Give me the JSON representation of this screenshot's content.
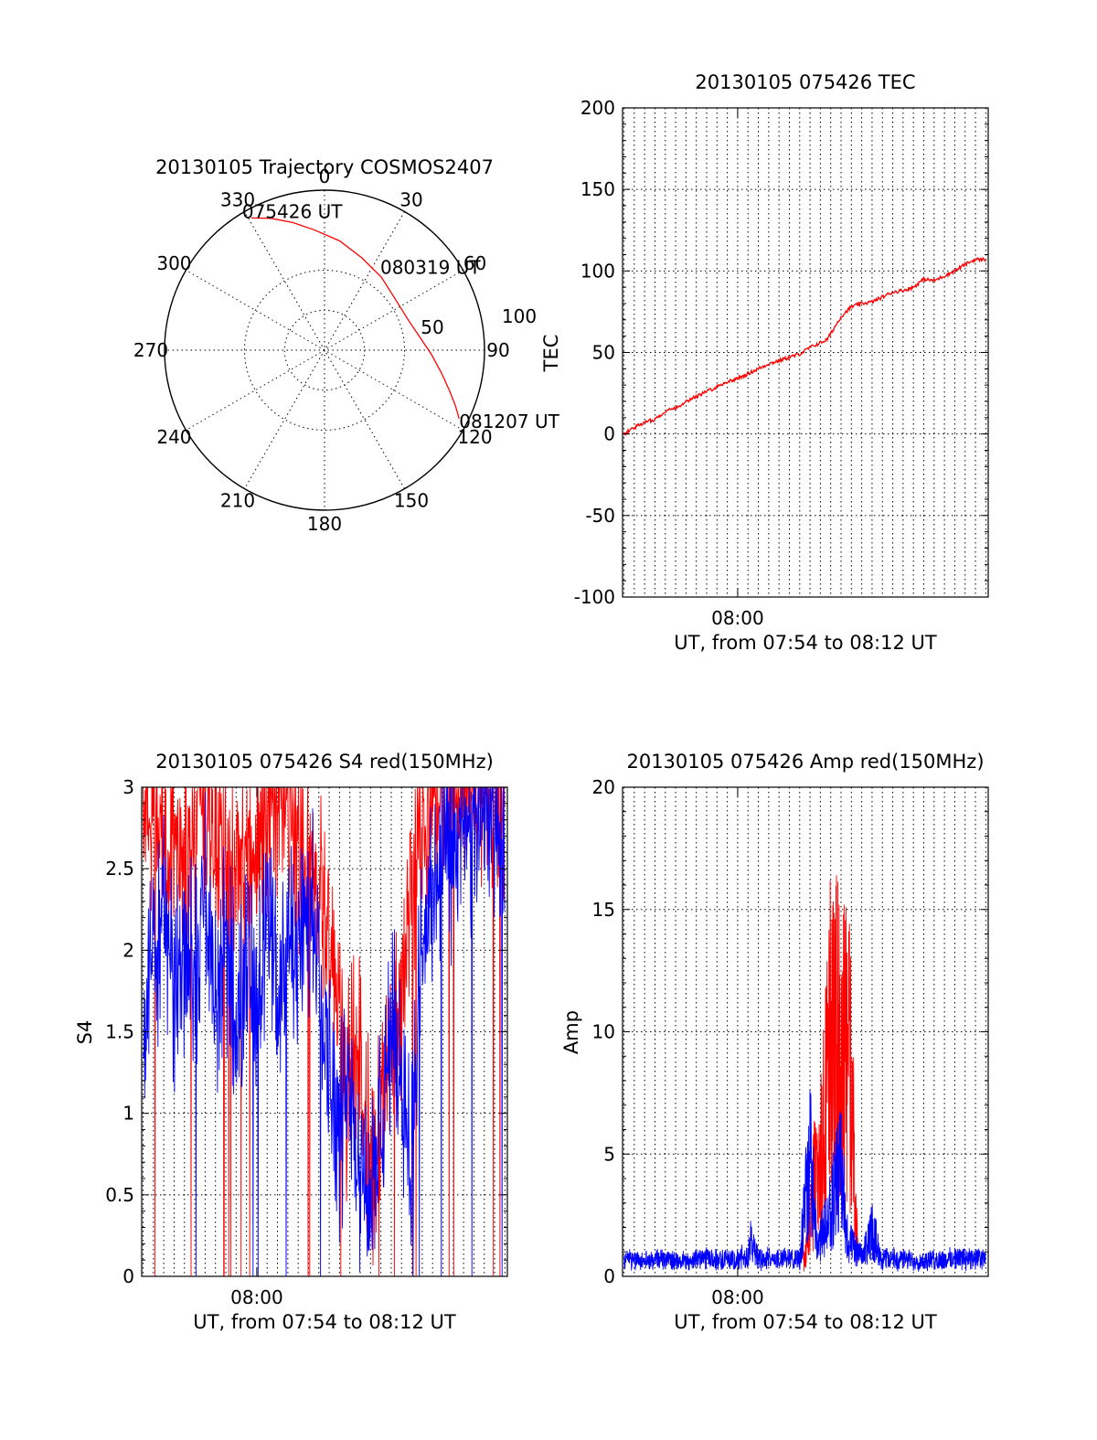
{
  "colors": {
    "red": "#ff0000",
    "blue": "#0000ff",
    "axis": "#000000",
    "background": "#ffffff"
  },
  "chart_data": [
    {
      "id": "trajectory",
      "type": "polar",
      "title": "20130105 Trajectory COSMOS2407",
      "azimuth_ticks": [
        "0",
        "30",
        "60",
        "90",
        "120",
        "150",
        "180",
        "210",
        "240",
        "270",
        "300",
        "330"
      ],
      "radial_ticks": [
        "50",
        "100"
      ],
      "elevation_range": [
        0,
        90
      ],
      "series": [
        {
          "color": "red",
          "points": [
            {
              "az": 331,
              "el": 5
            },
            {
              "az": 338,
              "el": 10
            },
            {
              "az": 346,
              "el": 16
            },
            {
              "az": 355,
              "el": 22
            },
            {
              "az": 8,
              "el": 28
            },
            {
              "az": 22,
              "el": 34
            },
            {
              "az": 38,
              "el": 38
            },
            {
              "az": 56,
              "el": 41
            },
            {
              "az": 70,
              "el": 40
            },
            {
              "az": 82,
              "el": 36
            },
            {
              "az": 92,
              "el": 30
            },
            {
              "az": 101,
              "el": 23
            },
            {
              "az": 108,
              "el": 16
            },
            {
              "az": 113,
              "el": 10
            },
            {
              "az": 117,
              "el": 5
            }
          ]
        }
      ],
      "annotations": [
        {
          "text": "075426 UT",
          "az": 331,
          "el": 5
        },
        {
          "text": "080319 UT",
          "az": 56,
          "el": 41
        },
        {
          "text": "081207 UT",
          "az": 117,
          "el": 5
        }
      ]
    },
    {
      "id": "tec",
      "type": "line",
      "title": "20130105 075426 TEC",
      "xlabel": "UT, from 07:54 to 08:12 UT",
      "ylabel": "TEC",
      "xlim": [
        "07:54:26",
        "08:12:07"
      ],
      "ylim": [
        -100,
        200
      ],
      "yticks": [
        -100,
        -50,
        0,
        50,
        100,
        150,
        200
      ],
      "xtick_labels": [
        {
          "x": "08:00:00",
          "label": "08:00"
        }
      ],
      "grid": true,
      "series": [
        {
          "color": "red",
          "points": [
            {
              "x": "07:54:30",
              "y": 0
            },
            {
              "x": "07:55:00",
              "y": 4
            },
            {
              "x": "07:55:30",
              "y": 7
            },
            {
              "x": "07:56:00",
              "y": 9
            },
            {
              "x": "07:56:30",
              "y": 14
            },
            {
              "x": "07:57:00",
              "y": 16
            },
            {
              "x": "07:57:30",
              "y": 20
            },
            {
              "x": "07:58:00",
              "y": 23
            },
            {
              "x": "07:58:30",
              "y": 26
            },
            {
              "x": "07:59:00",
              "y": 29
            },
            {
              "x": "07:59:30",
              "y": 32
            },
            {
              "x": "08:00:00",
              "y": 34
            },
            {
              "x": "08:00:30",
              "y": 37
            },
            {
              "x": "08:01:00",
              "y": 40
            },
            {
              "x": "08:01:30",
              "y": 43
            },
            {
              "x": "08:02:00",
              "y": 45
            },
            {
              "x": "08:02:30",
              "y": 47
            },
            {
              "x": "08:03:00",
              "y": 49
            },
            {
              "x": "08:03:30",
              "y": 53
            },
            {
              "x": "08:04:00",
              "y": 56
            },
            {
              "x": "08:04:20",
              "y": 58
            },
            {
              "x": "08:04:40",
              "y": 65
            },
            {
              "x": "08:05:00",
              "y": 72
            },
            {
              "x": "08:05:30",
              "y": 78
            },
            {
              "x": "08:06:00",
              "y": 80
            },
            {
              "x": "08:06:30",
              "y": 81
            },
            {
              "x": "08:07:00",
              "y": 84
            },
            {
              "x": "08:07:30",
              "y": 87
            },
            {
              "x": "08:08:00",
              "y": 88
            },
            {
              "x": "08:08:30",
              "y": 90
            },
            {
              "x": "08:09:00",
              "y": 95
            },
            {
              "x": "08:09:30",
              "y": 94
            },
            {
              "x": "08:10:00",
              "y": 97
            },
            {
              "x": "08:10:30",
              "y": 100
            },
            {
              "x": "08:11:00",
              "y": 104
            },
            {
              "x": "08:11:30",
              "y": 107
            },
            {
              "x": "08:12:00",
              "y": 107
            }
          ]
        }
      ]
    },
    {
      "id": "s4",
      "type": "line",
      "title": "20130105 075426 S4 red(150MHz)",
      "xlabel": "UT, from 07:54 to 08:12 UT",
      "ylabel": "S4",
      "xlim": [
        "07:54:26",
        "08:12:07"
      ],
      "ylim": [
        0,
        3
      ],
      "yticks": [
        0,
        0.5,
        1,
        1.5,
        2,
        2.5,
        3
      ],
      "ytick_labels": [
        "0",
        "0.5",
        "1",
        "1.5",
        "2",
        "2.5",
        "3"
      ],
      "xtick_labels": [
        {
          "x": "08:00:00",
          "label": "08:00"
        }
      ],
      "grid": true,
      "series": [
        {
          "color": "red",
          "points": [
            {
              "x": "07:54:30",
              "y": 2.9
            },
            {
              "x": "07:55:00",
              "y": 2.8
            },
            {
              "x": "07:55:30",
              "y": 2.6
            },
            {
              "x": "07:56:00",
              "y": 2.7
            },
            {
              "x": "07:56:30",
              "y": 2.5
            },
            {
              "x": "07:57:00",
              "y": 2.6
            },
            {
              "x": "07:57:30",
              "y": 2.8
            },
            {
              "x": "07:58:00",
              "y": 2.7
            },
            {
              "x": "07:58:30",
              "y": 2.6
            },
            {
              "x": "07:59:00",
              "y": 2.5
            },
            {
              "x": "07:59:30",
              "y": 2.4
            },
            {
              "x": "08:00:00",
              "y": 2.6
            },
            {
              "x": "08:00:30",
              "y": 2.7
            },
            {
              "x": "08:01:00",
              "y": 2.9
            },
            {
              "x": "08:01:30",
              "y": 2.8
            },
            {
              "x": "08:02:00",
              "y": 2.5
            },
            {
              "x": "08:02:30",
              "y": 2.6
            },
            {
              "x": "08:03:00",
              "y": 2.3
            },
            {
              "x": "08:03:30",
              "y": 2.0
            },
            {
              "x": "08:04:00",
              "y": 1.5
            },
            {
              "x": "08:04:20",
              "y": 1.1
            },
            {
              "x": "08:04:40",
              "y": 1.3
            },
            {
              "x": "08:05:00",
              "y": 1.2
            },
            {
              "x": "08:05:20",
              "y": 0.8
            },
            {
              "x": "08:05:40",
              "y": 0.55
            },
            {
              "x": "08:06:00",
              "y": 1.0
            },
            {
              "x": "08:06:30",
              "y": 1.35
            },
            {
              "x": "08:07:00",
              "y": 1.6
            },
            {
              "x": "08:07:30",
              "y": 2.4
            },
            {
              "x": "08:08:00",
              "y": 2.8
            },
            {
              "x": "08:09:00",
              "y": 2.9
            },
            {
              "x": "08:10:00",
              "y": 2.95
            },
            {
              "x": "08:11:00",
              "y": 2.9
            },
            {
              "x": "08:12:00",
              "y": 2.95
            }
          ]
        },
        {
          "color": "blue",
          "points": [
            {
              "x": "07:54:30",
              "y": 1.4
            },
            {
              "x": "07:54:50",
              "y": 2.0
            },
            {
              "x": "07:55:10",
              "y": 1.8
            },
            {
              "x": "07:55:30",
              "y": 2.3
            },
            {
              "x": "07:56:00",
              "y": 1.7
            },
            {
              "x": "07:56:30",
              "y": 2.0
            },
            {
              "x": "07:57:00",
              "y": 1.7
            },
            {
              "x": "07:57:30",
              "y": 2.2
            },
            {
              "x": "07:58:00",
              "y": 1.6
            },
            {
              "x": "07:58:30",
              "y": 2.0
            },
            {
              "x": "07:59:00",
              "y": 1.5
            },
            {
              "x": "07:59:30",
              "y": 1.9
            },
            {
              "x": "08:00:00",
              "y": 1.6
            },
            {
              "x": "08:00:30",
              "y": 2.1
            },
            {
              "x": "08:01:00",
              "y": 1.7
            },
            {
              "x": "08:01:30",
              "y": 2.0
            },
            {
              "x": "08:02:00",
              "y": 1.9
            },
            {
              "x": "08:02:30",
              "y": 2.2
            },
            {
              "x": "08:03:00",
              "y": 1.9
            },
            {
              "x": "08:03:30",
              "y": 1.3
            },
            {
              "x": "08:04:00",
              "y": 0.8
            },
            {
              "x": "08:04:30",
              "y": 1.2
            },
            {
              "x": "08:05:00",
              "y": 0.6
            },
            {
              "x": "08:05:40",
              "y": 0.45
            },
            {
              "x": "08:06:00",
              "y": 0.8
            },
            {
              "x": "08:06:30",
              "y": 1.5
            },
            {
              "x": "08:07:00",
              "y": 1.2
            },
            {
              "x": "08:07:30",
              "y": 0.7
            },
            {
              "x": "08:08:00",
              "y": 2.0
            },
            {
              "x": "08:08:30",
              "y": 2.3
            },
            {
              "x": "08:09:00",
              "y": 2.5
            },
            {
              "x": "08:10:00",
              "y": 2.6
            },
            {
              "x": "08:11:00",
              "y": 2.8
            },
            {
              "x": "08:12:00",
              "y": 2.7
            }
          ]
        }
      ]
    },
    {
      "id": "amp",
      "type": "line",
      "title": "20130105 075426 Amp red(150MHz)",
      "xlabel": "UT, from 07:54 to 08:12 UT",
      "ylabel": "Amp",
      "xlim": [
        "07:54:26",
        "08:12:07"
      ],
      "ylim": [
        0,
        20
      ],
      "yticks": [
        0,
        5,
        10,
        15,
        20
      ],
      "xtick_labels": [
        {
          "x": "08:00:00",
          "label": "08:00"
        }
      ],
      "grid": true,
      "series": [
        {
          "color": "red",
          "points": [
            {
              "x": "08:03:10",
              "y": 0.8
            },
            {
              "x": "08:03:20",
              "y": 2.0
            },
            {
              "x": "08:03:30",
              "y": 4.0
            },
            {
              "x": "08:03:40",
              "y": 6.5
            },
            {
              "x": "08:03:50",
              "y": 5.5
            },
            {
              "x": "08:04:00",
              "y": 8.0
            },
            {
              "x": "08:04:10",
              "y": 9.5
            },
            {
              "x": "08:04:20",
              "y": 12.0
            },
            {
              "x": "08:04:30",
              "y": 17.0
            },
            {
              "x": "08:04:40",
              "y": 14.0
            },
            {
              "x": "08:04:50",
              "y": 16.5
            },
            {
              "x": "08:05:00",
              "y": 12.0
            },
            {
              "x": "08:05:10",
              "y": 15.0
            },
            {
              "x": "08:05:20",
              "y": 13.0
            },
            {
              "x": "08:05:30",
              "y": 15.5
            },
            {
              "x": "08:05:40",
              "y": 6.0
            },
            {
              "x": "08:05:50",
              "y": 1.0
            }
          ]
        },
        {
          "color": "blue",
          "points": [
            {
              "x": "07:54:30",
              "y": 0.9
            },
            {
              "x": "07:55:30",
              "y": 0.8
            },
            {
              "x": "07:56:30",
              "y": 0.9
            },
            {
              "x": "07:57:30",
              "y": 0.8
            },
            {
              "x": "07:58:30",
              "y": 1.0
            },
            {
              "x": "07:59:30",
              "y": 0.9
            },
            {
              "x": "08:00:30",
              "y": 1.1
            },
            {
              "x": "08:00:40",
              "y": 2.3
            },
            {
              "x": "08:01:00",
              "y": 1.0
            },
            {
              "x": "08:02:00",
              "y": 0.9
            },
            {
              "x": "08:03:00",
              "y": 1.0
            },
            {
              "x": "08:03:30",
              "y": 7.5
            },
            {
              "x": "08:03:50",
              "y": 2.0
            },
            {
              "x": "08:04:20",
              "y": 3.0
            },
            {
              "x": "08:04:40",
              "y": 5.0
            },
            {
              "x": "08:05:00",
              "y": 6.5
            },
            {
              "x": "08:05:20",
              "y": 2.0
            },
            {
              "x": "08:06:00",
              "y": 1.0
            },
            {
              "x": "08:06:30",
              "y": 2.7
            },
            {
              "x": "08:07:00",
              "y": 1.0
            },
            {
              "x": "08:08:00",
              "y": 0.9
            },
            {
              "x": "08:09:00",
              "y": 0.8
            },
            {
              "x": "08:10:00",
              "y": 0.9
            },
            {
              "x": "08:11:00",
              "y": 1.0
            },
            {
              "x": "08:12:00",
              "y": 0.9
            }
          ]
        }
      ]
    }
  ]
}
